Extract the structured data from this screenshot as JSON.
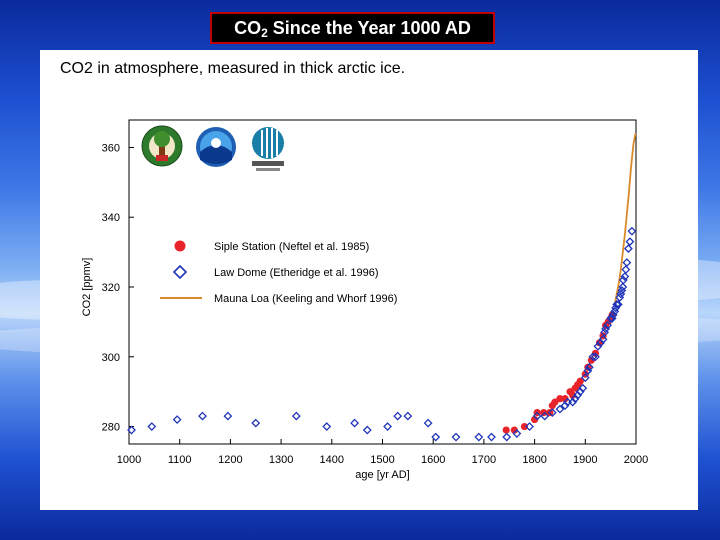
{
  "slide": {
    "title_main": "CO",
    "title_sub": "2",
    "title_rest": "  Since the Year 1000 AD",
    "subtitle": "CO2 in atmosphere, measured in thick arctic ice."
  },
  "logos": [
    "tree-seal-logo",
    "noaa-logo",
    "csiro-logo"
  ],
  "colors": {
    "siple": "#e8232a",
    "law": "#1f35b8",
    "mauna": "#d98a2a"
  },
  "chart_data": {
    "type": "scatter",
    "title": "",
    "xlabel": "age [yr AD]",
    "ylabel": "CO2 [ppmv]",
    "xlim": [
      1000,
      2000
    ],
    "ylim": [
      275,
      365
    ],
    "xticks": [
      1000,
      1100,
      1200,
      1300,
      1400,
      1500,
      1600,
      1700,
      1800,
      1900,
      2000
    ],
    "yticks": [
      280,
      300,
      320,
      340,
      360
    ],
    "legend": [
      {
        "label": "Siple Station (Neftel et al. 1985)",
        "marker": "circle"
      },
      {
        "label": "Law Dome (Etheridge et al. 1996)",
        "marker": "diamond"
      },
      {
        "label": "Mauna Loa (Keeling and Whorf 1996)",
        "marker": "line"
      }
    ],
    "series": [
      {
        "name": "Siple Station (Neftel et al. 1985)",
        "x": [
          1744,
          1760,
          1780,
          1800,
          1805,
          1818,
          1830,
          1835,
          1840,
          1850,
          1860,
          1870,
          1875,
          1880,
          1885,
          1890,
          1900,
          1905,
          1912,
          1920,
          1928,
          1935,
          1940,
          1945,
          1950,
          1953
        ],
        "y": [
          279,
          279,
          280,
          282,
          284,
          284,
          284,
          286,
          287,
          288,
          288,
          290,
          289,
          291,
          292,
          293,
          295,
          297,
          299,
          301,
          304,
          306,
          309,
          310,
          311,
          312
        ]
      },
      {
        "name": "Law Dome (Etheridge et al. 1996)",
        "x": [
          1005,
          1045,
          1095,
          1145,
          1195,
          1250,
          1330,
          1390,
          1445,
          1470,
          1510,
          1530,
          1550,
          1590,
          1605,
          1645,
          1690,
          1715,
          1745,
          1765,
          1790,
          1805,
          1820,
          1835,
          1850,
          1860,
          1865,
          1875,
          1880,
          1885,
          1890,
          1895,
          1900,
          1905,
          1908,
          1915,
          1920,
          1925,
          1930,
          1935,
          1938,
          1940,
          1944,
          1950,
          1953,
          1955,
          1958,
          1960,
          1962,
          1965,
          1968,
          1970,
          1972,
          1974,
          1975,
          1978,
          1980,
          1982,
          1985,
          1988,
          1992
        ],
        "y": [
          279,
          280,
          282,
          283,
          283,
          281,
          283,
          280,
          281,
          279,
          280,
          283,
          283,
          281,
          277,
          277,
          277,
          277,
          277,
          278,
          280,
          283,
          283,
          284,
          285,
          286,
          287,
          287,
          288,
          289,
          290,
          291,
          294,
          296,
          297,
          300,
          300,
          303,
          304,
          305,
          307,
          308,
          309,
          311,
          311,
          312,
          313,
          314,
          315,
          315,
          317,
          318,
          319,
          320,
          322,
          323,
          325,
          327,
          331,
          333,
          336
        ]
      },
      {
        "name": "Mauna Loa (Keeling and Whorf 1996)",
        "x": [
          1958,
          1962,
          1966,
          1970,
          1974,
          1978,
          1982,
          1986,
          1990,
          1995,
          1999
        ],
        "y": [
          315,
          318,
          321,
          325,
          330,
          335,
          341,
          347,
          354,
          361,
          368
        ]
      }
    ]
  }
}
